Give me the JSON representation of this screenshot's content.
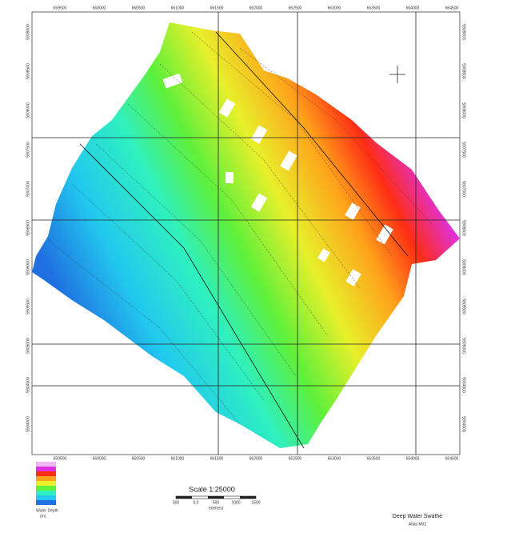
{
  "map": {
    "x_labels": [
      "659500",
      "660000",
      "660500",
      "661000",
      "661500",
      "662000",
      "662500",
      "663000",
      "663500",
      "664000",
      "664500"
    ],
    "y_labels": [
      "5909000",
      "5908500",
      "5908000",
      "5907500",
      "5907000",
      "5906500",
      "5906000",
      "5905500",
      "5905000",
      "5904500",
      "5904000"
    ],
    "legend_title": "Water Depth",
    "legend_unit": "(m)",
    "scale_title": "Scale 1:25000",
    "scale_labels": [
      "500",
      "0.0",
      "500",
      "1000",
      "1500"
    ],
    "scale_unit": "(metres)",
    "footer_title": "Deep Water Swathe",
    "footer_subtitle": "Atlas M02"
  }
}
